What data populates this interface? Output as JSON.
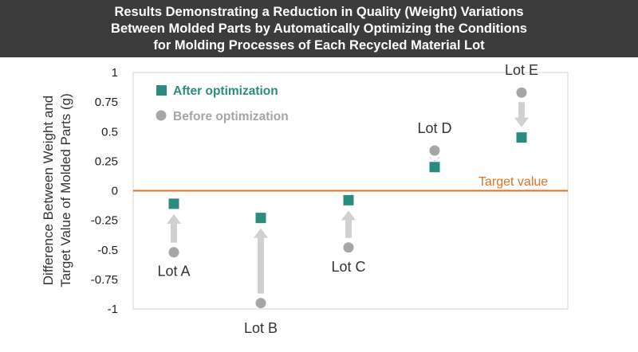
{
  "title_lines": [
    "Results Demonstrating a Reduction in Quality (Weight) Variations",
    "Between Molded Parts by Automatically Optimizing the Conditions",
    "for Molding Processes of Each Recycled Material Lot"
  ],
  "colors": {
    "after": "#2a8c7e",
    "before": "#a6a6a6",
    "target": "#e07020",
    "arrow": "#d0d0d0",
    "title_bg": "#3c3c3c"
  },
  "chart_data": {
    "type": "scatter",
    "title": "Results Demonstrating a Reduction in Quality (Weight) Variations Between Molded Parts by Automatically Optimizing the Conditions for Molding Processes of Each Recycled Material Lot",
    "ylabel_lines": [
      "Difference Between Weight and",
      "Target Value of Molded Parts (g)"
    ],
    "xlabel": "",
    "ylim": [
      -1,
      1
    ],
    "yticks": [
      1,
      0.75,
      0.5,
      0.25,
      0,
      -0.25,
      -0.5,
      -0.75,
      -1
    ],
    "ytick_labels": [
      "1",
      "0.75",
      "0.5",
      "0.25",
      "0",
      "-0.25",
      "-0.5",
      "-0.75",
      "-1"
    ],
    "categories": [
      "Lot A",
      "Lot B",
      "Lot C",
      "Lot D",
      "Lot E"
    ],
    "series": [
      {
        "name": "After optimization",
        "marker": "square",
        "values": [
          -0.11,
          -0.23,
          -0.08,
          0.2,
          0.45
        ]
      },
      {
        "name": "Before optimization",
        "marker": "circle",
        "values": [
          -0.52,
          -0.95,
          -0.48,
          0.34,
          0.83
        ]
      }
    ],
    "reference_line": {
      "value": 0,
      "label": "Target value"
    },
    "legend_position": "top-left",
    "grid": false
  }
}
